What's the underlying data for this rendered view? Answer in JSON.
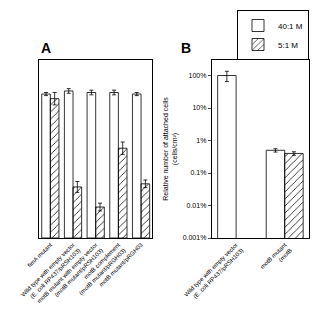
{
  "chart_data": [
    {
      "type": "bar",
      "title": "A",
      "categories": [
        "fimA mutant",
        "Wild type with empty vector\n(E. coli RP437/pRSH103)",
        "motB mutant with empty vector\n(motB mutant/pRSH103)",
        "motB complement\n(motB mutant/pRGH03)",
        "motB mutant/pRGH03"
      ],
      "series": [
        {
          "name": "40:1 M",
          "color": "#ffffff",
          "values": [
            0.93,
            0.95,
            0.94,
            0.94,
            0.93
          ],
          "errors": [
            0.01,
            0.015,
            0.015,
            0.015,
            0.01
          ]
        },
        {
          "name": "5:1 M",
          "color": "#d0d0d0",
          "values": [
            0.9,
            0.33,
            0.2,
            0.58,
            0.35
          ],
          "errors": [
            0.04,
            0.035,
            0.025,
            0.04,
            0.025
          ]
        }
      ],
      "ylim": [
        0,
        1.15
      ],
      "yticks": [],
      "grid": false,
      "tick_labels": "x"
    },
    {
      "type": "bar",
      "title": "B",
      "categories": [
        "Wild type with empty vector\n(E. coli RP437/pRSH103)",
        "motB mutant\n(motB"
      ],
      "series": [
        {
          "name": "40:1 M",
          "color": "#ffffff",
          "values": [
            100.0,
            0.5
          ],
          "errors": [
            35.0,
            0.06
          ]
        },
        {
          "name": "5:1 M",
          "color": "#d0d0d0",
          "values": [
            null,
            0.4
          ],
          "errors": [
            null,
            0.05
          ]
        }
      ],
      "y_label": "Relative number of attached cells\n(cells/cm²)",
      "log": "y",
      "ylim": [
        0.001,
        300
      ],
      "yticks": [
        {
          "value": 0.001,
          "label": "0.001%"
        },
        {
          "value": 0.01,
          "label": "0.01%"
        },
        {
          "value": 0.1,
          "label": "0.1%"
        },
        {
          "value": 1.0,
          "label": "1%"
        },
        {
          "value": 10.0,
          "label": "10%"
        },
        {
          "value": 100.0,
          "label": "100%"
        }
      ],
      "grid": false,
      "legend": "upper right"
    }
  ]
}
